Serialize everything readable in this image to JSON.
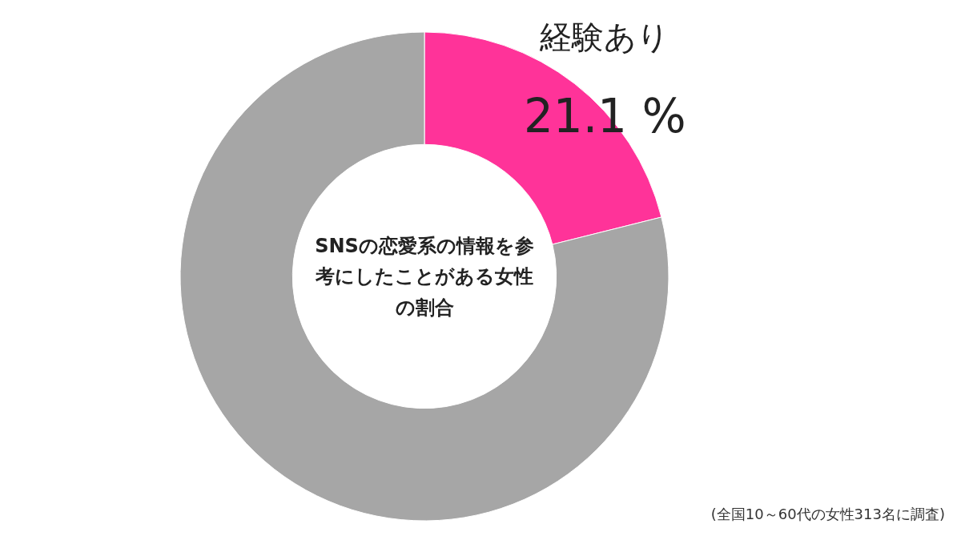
{
  "chart_data": {
    "type": "donut",
    "title": "SNSの恋愛系の情報を参考にしたことがある女性の割合",
    "categories": [
      "経験あり",
      null
    ],
    "values": [
      21.1,
      78.9
    ],
    "colors": [
      "#ff3399",
      "#a6a6a6"
    ],
    "value_labels": [
      "21.1 %",
      null
    ],
    "annotations": [
      "(全国10～60代の女性313名に調査)"
    ]
  }
}
